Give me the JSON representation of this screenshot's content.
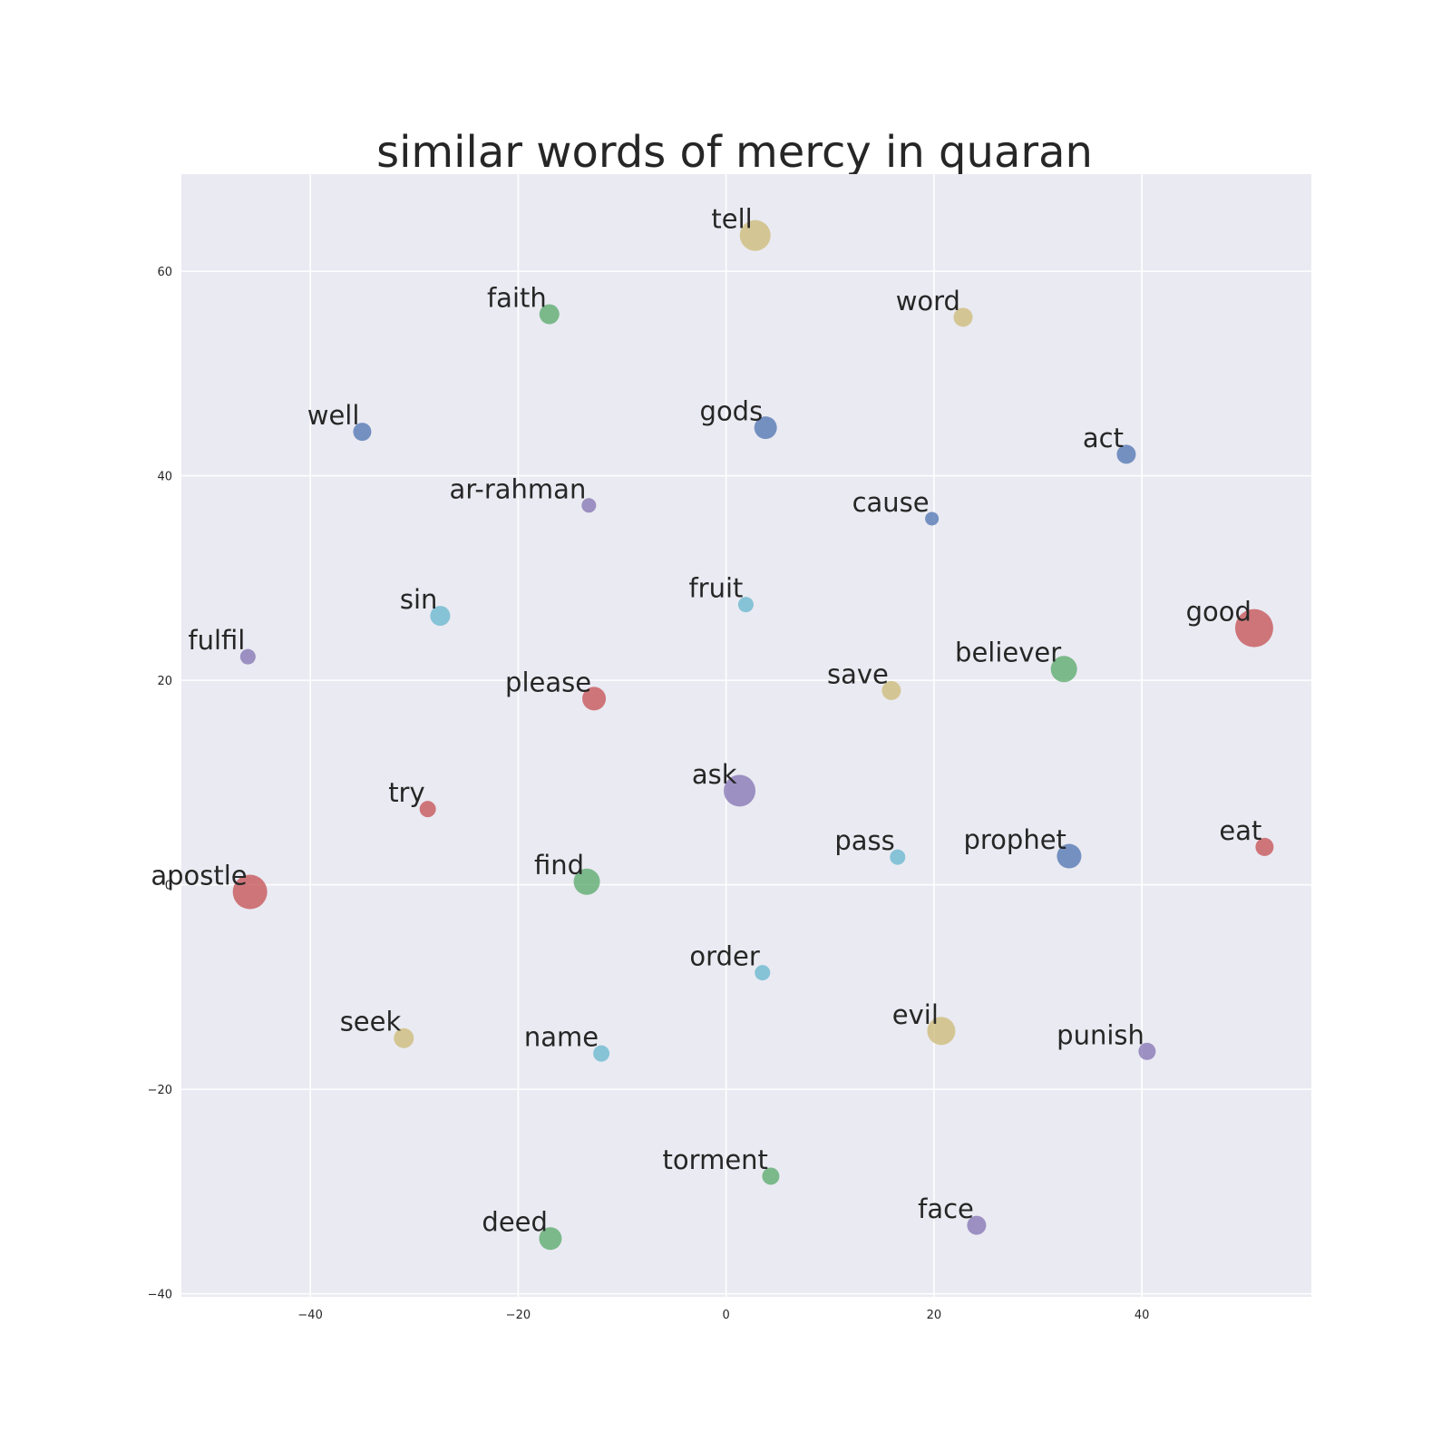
{
  "chart_data": {
    "type": "scatter",
    "title": "similar words of mercy in quaran",
    "xlabel": "",
    "ylabel": "",
    "xlim": [
      -52.4,
      56.3
    ],
    "ylim": [
      -40.3,
      69.5
    ],
    "xticks": [
      -40,
      -20,
      0,
      20,
      40
    ],
    "yticks": [
      -40,
      -20,
      0,
      20,
      40,
      60
    ],
    "grid": true,
    "colors": {
      "red": "#c44e52",
      "green": "#55a868",
      "blue": "#4c72b0",
      "purple": "#8172b2",
      "tan": "#ccb974",
      "cyan": "#64b5cd",
      "background": "#eaeaf2"
    },
    "points": [
      {
        "label": "tell",
        "x": 2.8,
        "y": 63.5,
        "size": 34,
        "color": "tan"
      },
      {
        "label": "faith",
        "x": -17.0,
        "y": 55.8,
        "size": 22,
        "color": "green"
      },
      {
        "label": "word",
        "x": 22.8,
        "y": 55.5,
        "size": 21,
        "color": "tan"
      },
      {
        "label": "well",
        "x": -35.0,
        "y": 44.3,
        "size": 20,
        "color": "blue"
      },
      {
        "label": "gods",
        "x": 3.8,
        "y": 44.7,
        "size": 25,
        "color": "blue"
      },
      {
        "label": "act",
        "x": 38.5,
        "y": 42.1,
        "size": 21,
        "color": "blue"
      },
      {
        "label": "ar-rahman",
        "x": -13.2,
        "y": 37.1,
        "size": 16,
        "color": "purple"
      },
      {
        "label": "cause",
        "x": 19.8,
        "y": 35.8,
        "size": 15,
        "color": "blue"
      },
      {
        "label": "sin",
        "x": -27.5,
        "y": 26.3,
        "size": 22,
        "color": "cyan"
      },
      {
        "label": "fruit",
        "x": 1.9,
        "y": 27.4,
        "size": 17,
        "color": "cyan"
      },
      {
        "label": "good",
        "x": 50.8,
        "y": 25.1,
        "size": 42,
        "color": "red"
      },
      {
        "label": "fulfil",
        "x": -46.0,
        "y": 22.3,
        "size": 17,
        "color": "purple"
      },
      {
        "label": "believer",
        "x": 32.5,
        "y": 21.1,
        "size": 29,
        "color": "green"
      },
      {
        "label": "please",
        "x": -12.7,
        "y": 18.2,
        "size": 26,
        "color": "red"
      },
      {
        "label": "save",
        "x": 15.9,
        "y": 19.0,
        "size": 21,
        "color": "tan"
      },
      {
        "label": "ask",
        "x": 1.3,
        "y": 9.2,
        "size": 35,
        "color": "purple"
      },
      {
        "label": "try",
        "x": -28.7,
        "y": 7.4,
        "size": 18,
        "color": "red"
      },
      {
        "label": "pass",
        "x": 16.5,
        "y": 2.7,
        "size": 17,
        "color": "cyan"
      },
      {
        "label": "prophet",
        "x": 33.0,
        "y": 2.8,
        "size": 27,
        "color": "blue"
      },
      {
        "label": "eat",
        "x": 51.8,
        "y": 3.7,
        "size": 20,
        "color": "red"
      },
      {
        "label": "apostle",
        "x": -45.8,
        "y": -0.7,
        "size": 38,
        "color": "red"
      },
      {
        "label": "find",
        "x": -13.4,
        "y": 0.3,
        "size": 29,
        "color": "green"
      },
      {
        "label": "order",
        "x": 3.5,
        "y": -8.6,
        "size": 17,
        "color": "cyan"
      },
      {
        "label": "seek",
        "x": -31.0,
        "y": -15.0,
        "size": 22,
        "color": "tan"
      },
      {
        "label": "name",
        "x": -12.0,
        "y": -16.5,
        "size": 18,
        "color": "cyan"
      },
      {
        "label": "evil",
        "x": 20.7,
        "y": -14.3,
        "size": 31,
        "color": "tan"
      },
      {
        "label": "punish",
        "x": 40.5,
        "y": -16.3,
        "size": 19,
        "color": "purple"
      },
      {
        "label": "torment",
        "x": 4.3,
        "y": -28.5,
        "size": 19,
        "color": "green"
      },
      {
        "label": "face",
        "x": 24.1,
        "y": -33.3,
        "size": 21,
        "color": "purple"
      },
      {
        "label": "deed",
        "x": -16.9,
        "y": -34.6,
        "size": 25,
        "color": "green"
      }
    ]
  }
}
